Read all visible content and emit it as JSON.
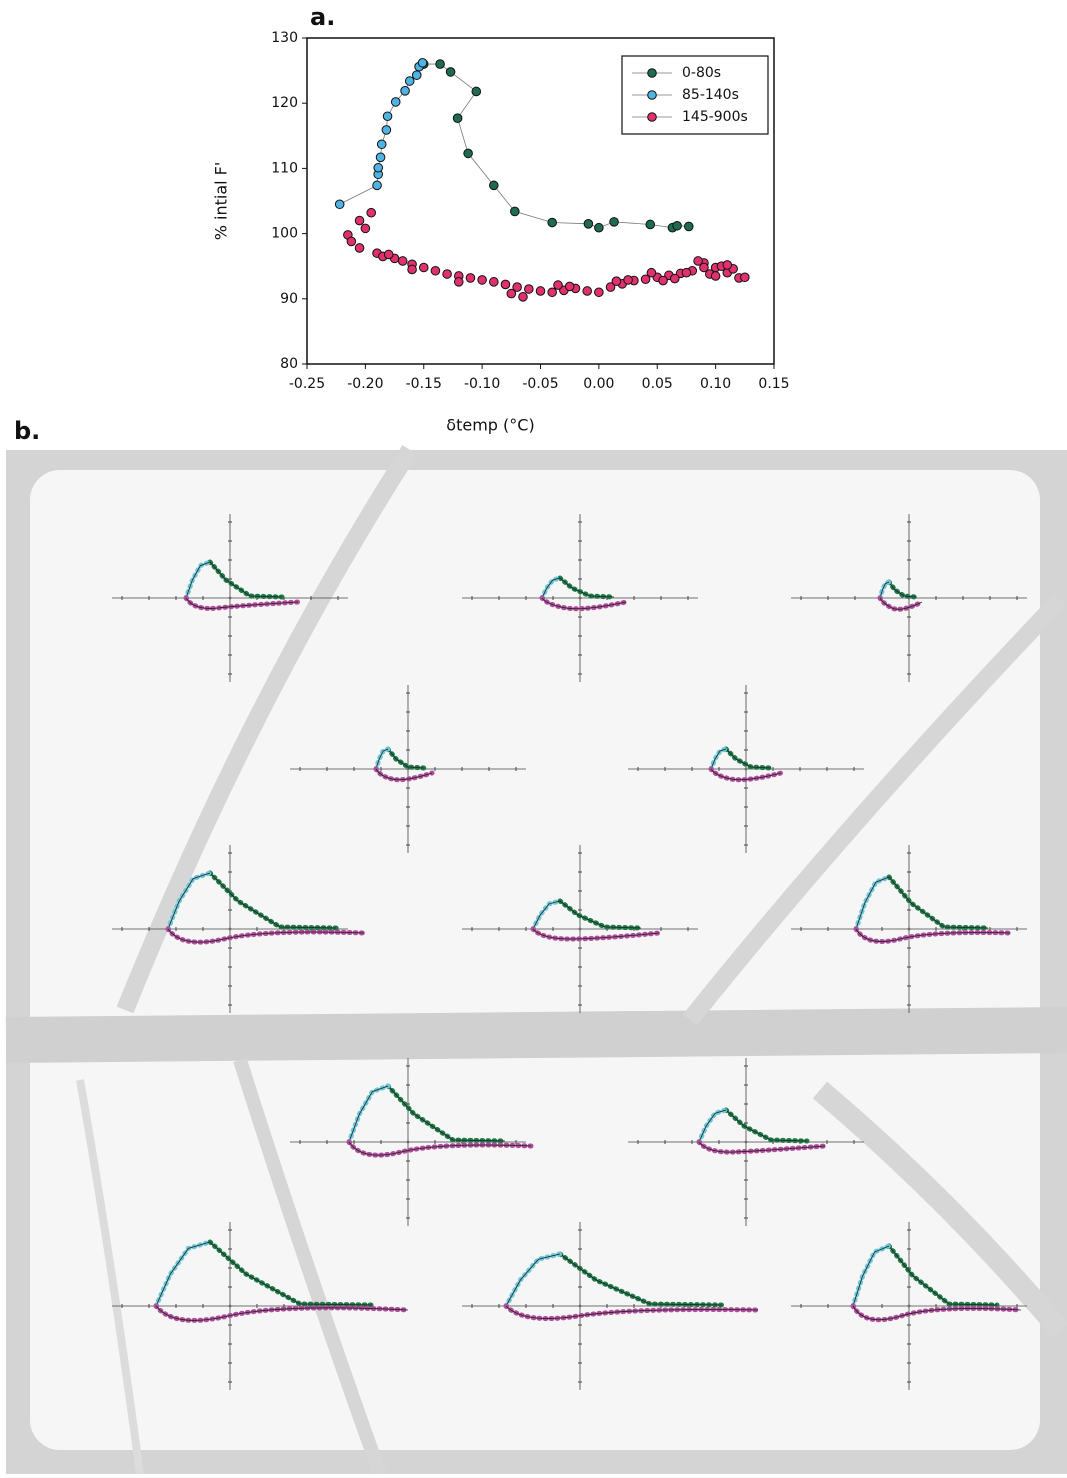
{
  "panel_labels": [
    "a.",
    "b."
  ],
  "chart_data": {
    "type": "scatter",
    "xlabel": "δtemp (°C)",
    "ylabel": "% intial F'",
    "xlim": [
      -0.25,
      0.15
    ],
    "ylim": [
      80,
      130
    ],
    "xticks": [
      {
        "value": -0.25,
        "label": "-0.25"
      },
      {
        "value": -0.2,
        "label": "-0.20"
      },
      -0.15,
      {
        "value": -0.1,
        "label": "-0.10"
      },
      -0.05,
      {
        "value": 0,
        "label": "0.00"
      },
      0.05,
      {
        "value": 0.1,
        "label": "0.10"
      },
      0.15
    ],
    "yticks": [
      80,
      90,
      100,
      110,
      120,
      130
    ],
    "legend": "upper right",
    "series": [
      {
        "name": "0-80s",
        "color": "#1e6b4f",
        "line": true,
        "x": [
          -0.15,
          -0.136,
          -0.127,
          -0.105,
          -0.121,
          -0.112,
          -0.09,
          -0.072,
          -0.04,
          -0.009,
          0.0,
          0.013,
          0.044,
          0.063,
          0.067,
          0.077
        ],
        "values": [
          126.0,
          126.0,
          124.8,
          121.8,
          117.7,
          112.3,
          107.4,
          103.4,
          101.7,
          101.5,
          100.9,
          101.8,
          101.4,
          100.9,
          101.2,
          101.1
        ]
      },
      {
        "name": "85-140s",
        "color": "#4fb3e3",
        "line": true,
        "x": [
          -0.222,
          -0.19,
          -0.189,
          -0.189,
          -0.187,
          -0.186,
          -0.182,
          -0.181,
          -0.174,
          -0.166,
          -0.162,
          -0.156,
          -0.154,
          -0.151
        ],
        "values": [
          104.5,
          107.4,
          109.1,
          110.1,
          111.7,
          113.7,
          115.9,
          118.0,
          120.2,
          121.9,
          123.4,
          124.3,
          125.6,
          126.2
        ]
      },
      {
        "name": "145-900s",
        "color": "#e0306e",
        "line": false,
        "x": [
          -0.195,
          -0.205,
          -0.2,
          -0.215,
          -0.212,
          -0.205,
          -0.19,
          -0.185,
          -0.175,
          -0.168,
          -0.16,
          -0.15,
          -0.14,
          -0.13,
          -0.12,
          -0.11,
          -0.1,
          -0.09,
          -0.08,
          -0.07,
          -0.06,
          -0.05,
          -0.04,
          -0.03,
          -0.02,
          -0.01,
          0.0,
          0.01,
          0.02,
          0.03,
          0.04,
          0.05,
          0.06,
          0.07,
          0.08,
          0.09,
          0.1,
          0.11,
          0.12,
          0.105,
          0.095,
          0.085,
          0.115,
          0.125,
          -0.075,
          -0.065,
          -0.035,
          -0.025,
          0.015,
          0.025,
          0.045,
          0.055,
          0.065,
          0.075,
          0.1,
          0.11,
          0.09,
          -0.12,
          -0.16,
          -0.18
        ],
        "values": [
          103.2,
          102.0,
          100.8,
          99.8,
          98.8,
          97.8,
          97.0,
          96.5,
          96.2,
          95.8,
          95.3,
          94.8,
          94.3,
          93.8,
          93.5,
          93.2,
          92.9,
          92.6,
          92.2,
          91.8,
          91.5,
          91.2,
          91.0,
          91.3,
          91.6,
          91.2,
          91.0,
          91.8,
          92.3,
          92.8,
          93.0,
          93.3,
          93.6,
          93.9,
          94.3,
          95.5,
          94.8,
          94.0,
          93.2,
          95.0,
          93.8,
          95.8,
          94.6,
          93.3,
          90.8,
          90.3,
          92.1,
          91.9,
          92.7,
          92.9,
          94.0,
          92.8,
          93.1,
          94.0,
          93.5,
          95.2,
          94.8,
          92.6,
          94.5,
          96.8
        ]
      }
    ]
  }
}
